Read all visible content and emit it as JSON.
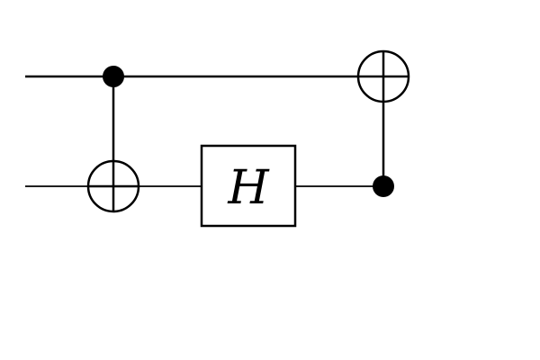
{
  "diagram": {
    "type": "quantum-circuit",
    "wires": [
      {
        "id": "q0"
      },
      {
        "id": "q1"
      }
    ],
    "gates": [
      {
        "kind": "cnot",
        "control": "q0",
        "target": "q1"
      },
      {
        "kind": "single",
        "wire": "q1",
        "label": "H"
      },
      {
        "kind": "cnot",
        "control": "q1",
        "target": "q0"
      }
    ],
    "colors": {
      "stroke": "#000000",
      "background": "#ffffff"
    }
  }
}
